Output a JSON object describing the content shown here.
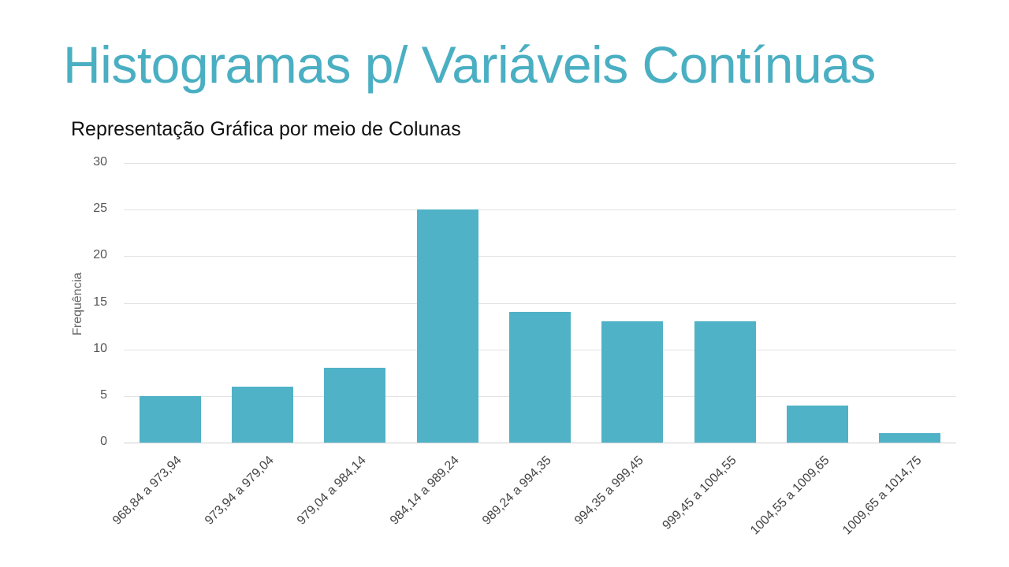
{
  "slide": {
    "title": "Histogramas p/ Variáveis Contínuas",
    "subtitle": "Representação Gráfica por meio de Colunas"
  },
  "colors": {
    "title": "#4aafc2",
    "bar": "#50b2c7",
    "grid": "#e3e3e3"
  },
  "chart_data": {
    "type": "bar",
    "title": "Representação Gráfica por meio de Colunas",
    "xlabel": "",
    "ylabel": "Frequência",
    "ylim": [
      0,
      30
    ],
    "yticks": [
      0,
      5,
      10,
      15,
      20,
      25,
      30
    ],
    "grid": true,
    "legend": null,
    "categories": [
      "968,84 a 973,94",
      "973,94 a 979,04",
      "979,04 a 984,14",
      "984,14 a 989,24",
      "989,24 a 994,35",
      "994,35 a 999,45",
      "999,45 a 1004,55",
      "1004,55 a 1009,65",
      "1009,65 a 1014,75"
    ],
    "values": [
      5,
      6,
      8,
      25,
      14,
      13,
      13,
      4,
      1
    ]
  }
}
